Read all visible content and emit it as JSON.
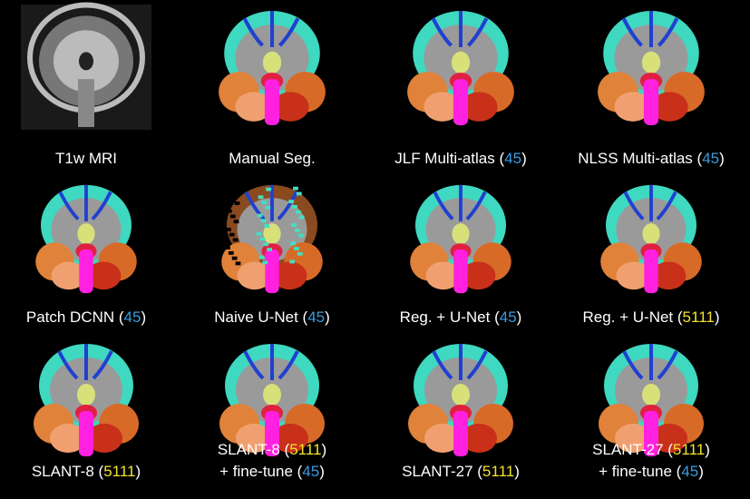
{
  "panels": [
    {
      "lines": [
        [
          {
            "text": "T1w MRI",
            "color": "#ffffff"
          }
        ]
      ]
    },
    {
      "lines": [
        [
          {
            "text": "Manual Seg.",
            "color": "#ffffff"
          }
        ]
      ]
    },
    {
      "lines": [
        [
          {
            "text": "JLF Multi-atlas (",
            "color": "#ffffff"
          },
          {
            "text": "45",
            "color": "#3b9be0"
          },
          {
            "text": ")",
            "color": "#ffffff"
          }
        ]
      ]
    },
    {
      "lines": [
        [
          {
            "text": "NLSS Multi-atlas (",
            "color": "#ffffff"
          },
          {
            "text": "45",
            "color": "#3b9be0"
          },
          {
            "text": ")",
            "color": "#ffffff"
          }
        ]
      ]
    },
    {
      "lines": [
        [
          {
            "text": "Patch DCNN (",
            "color": "#ffffff"
          },
          {
            "text": "45",
            "color": "#3b9be0"
          },
          {
            "text": ")",
            "color": "#ffffff"
          }
        ]
      ]
    },
    {
      "lines": [
        [
          {
            "text": "Naive U-Net (",
            "color": "#ffffff"
          },
          {
            "text": "45",
            "color": "#3b9be0"
          },
          {
            "text": ")",
            "color": "#ffffff"
          }
        ]
      ]
    },
    {
      "lines": [
        [
          {
            "text": "Reg. + U-Net (",
            "color": "#ffffff"
          },
          {
            "text": "45",
            "color": "#3b9be0"
          },
          {
            "text": ")",
            "color": "#ffffff"
          }
        ]
      ]
    },
    {
      "lines": [
        [
          {
            "text": "Reg. + U-Net (",
            "color": "#ffffff"
          },
          {
            "text": "5111",
            "color": "#f2e22c"
          },
          {
            "text": ")",
            "color": "#ffffff"
          }
        ]
      ]
    },
    {
      "lines": [
        [
          {
            "text": "SLANT-8 (",
            "color": "#ffffff"
          },
          {
            "text": "5111",
            "color": "#f2e22c"
          },
          {
            "text": ")",
            "color": "#ffffff"
          }
        ]
      ]
    },
    {
      "lines": [
        [
          {
            "text": "SLANT-8 (",
            "color": "#ffffff"
          },
          {
            "text": "5111",
            "color": "#f2e22c"
          },
          {
            "text": ")",
            "color": "#ffffff"
          }
        ],
        [
          {
            "text": "+ fine-tune (",
            "color": "#ffffff"
          },
          {
            "text": "45",
            "color": "#3b9be0"
          },
          {
            "text": ")",
            "color": "#ffffff"
          }
        ]
      ]
    },
    {
      "lines": [
        [
          {
            "text": "SLANT-27 (",
            "color": "#ffffff"
          },
          {
            "text": "5111",
            "color": "#f2e22c"
          },
          {
            "text": ")",
            "color": "#ffffff"
          }
        ]
      ]
    },
    {
      "lines": [
        [
          {
            "text": "SLANT-27 (",
            "color": "#ffffff"
          },
          {
            "text": "5111",
            "color": "#f2e22c"
          },
          {
            "text": ")",
            "color": "#ffffff"
          }
        ],
        [
          {
            "text": "+ fine-tune (",
            "color": "#ffffff"
          },
          {
            "text": "45",
            "color": "#3b9be0"
          },
          {
            "text": ")",
            "color": "#ffffff"
          }
        ]
      ]
    }
  ]
}
